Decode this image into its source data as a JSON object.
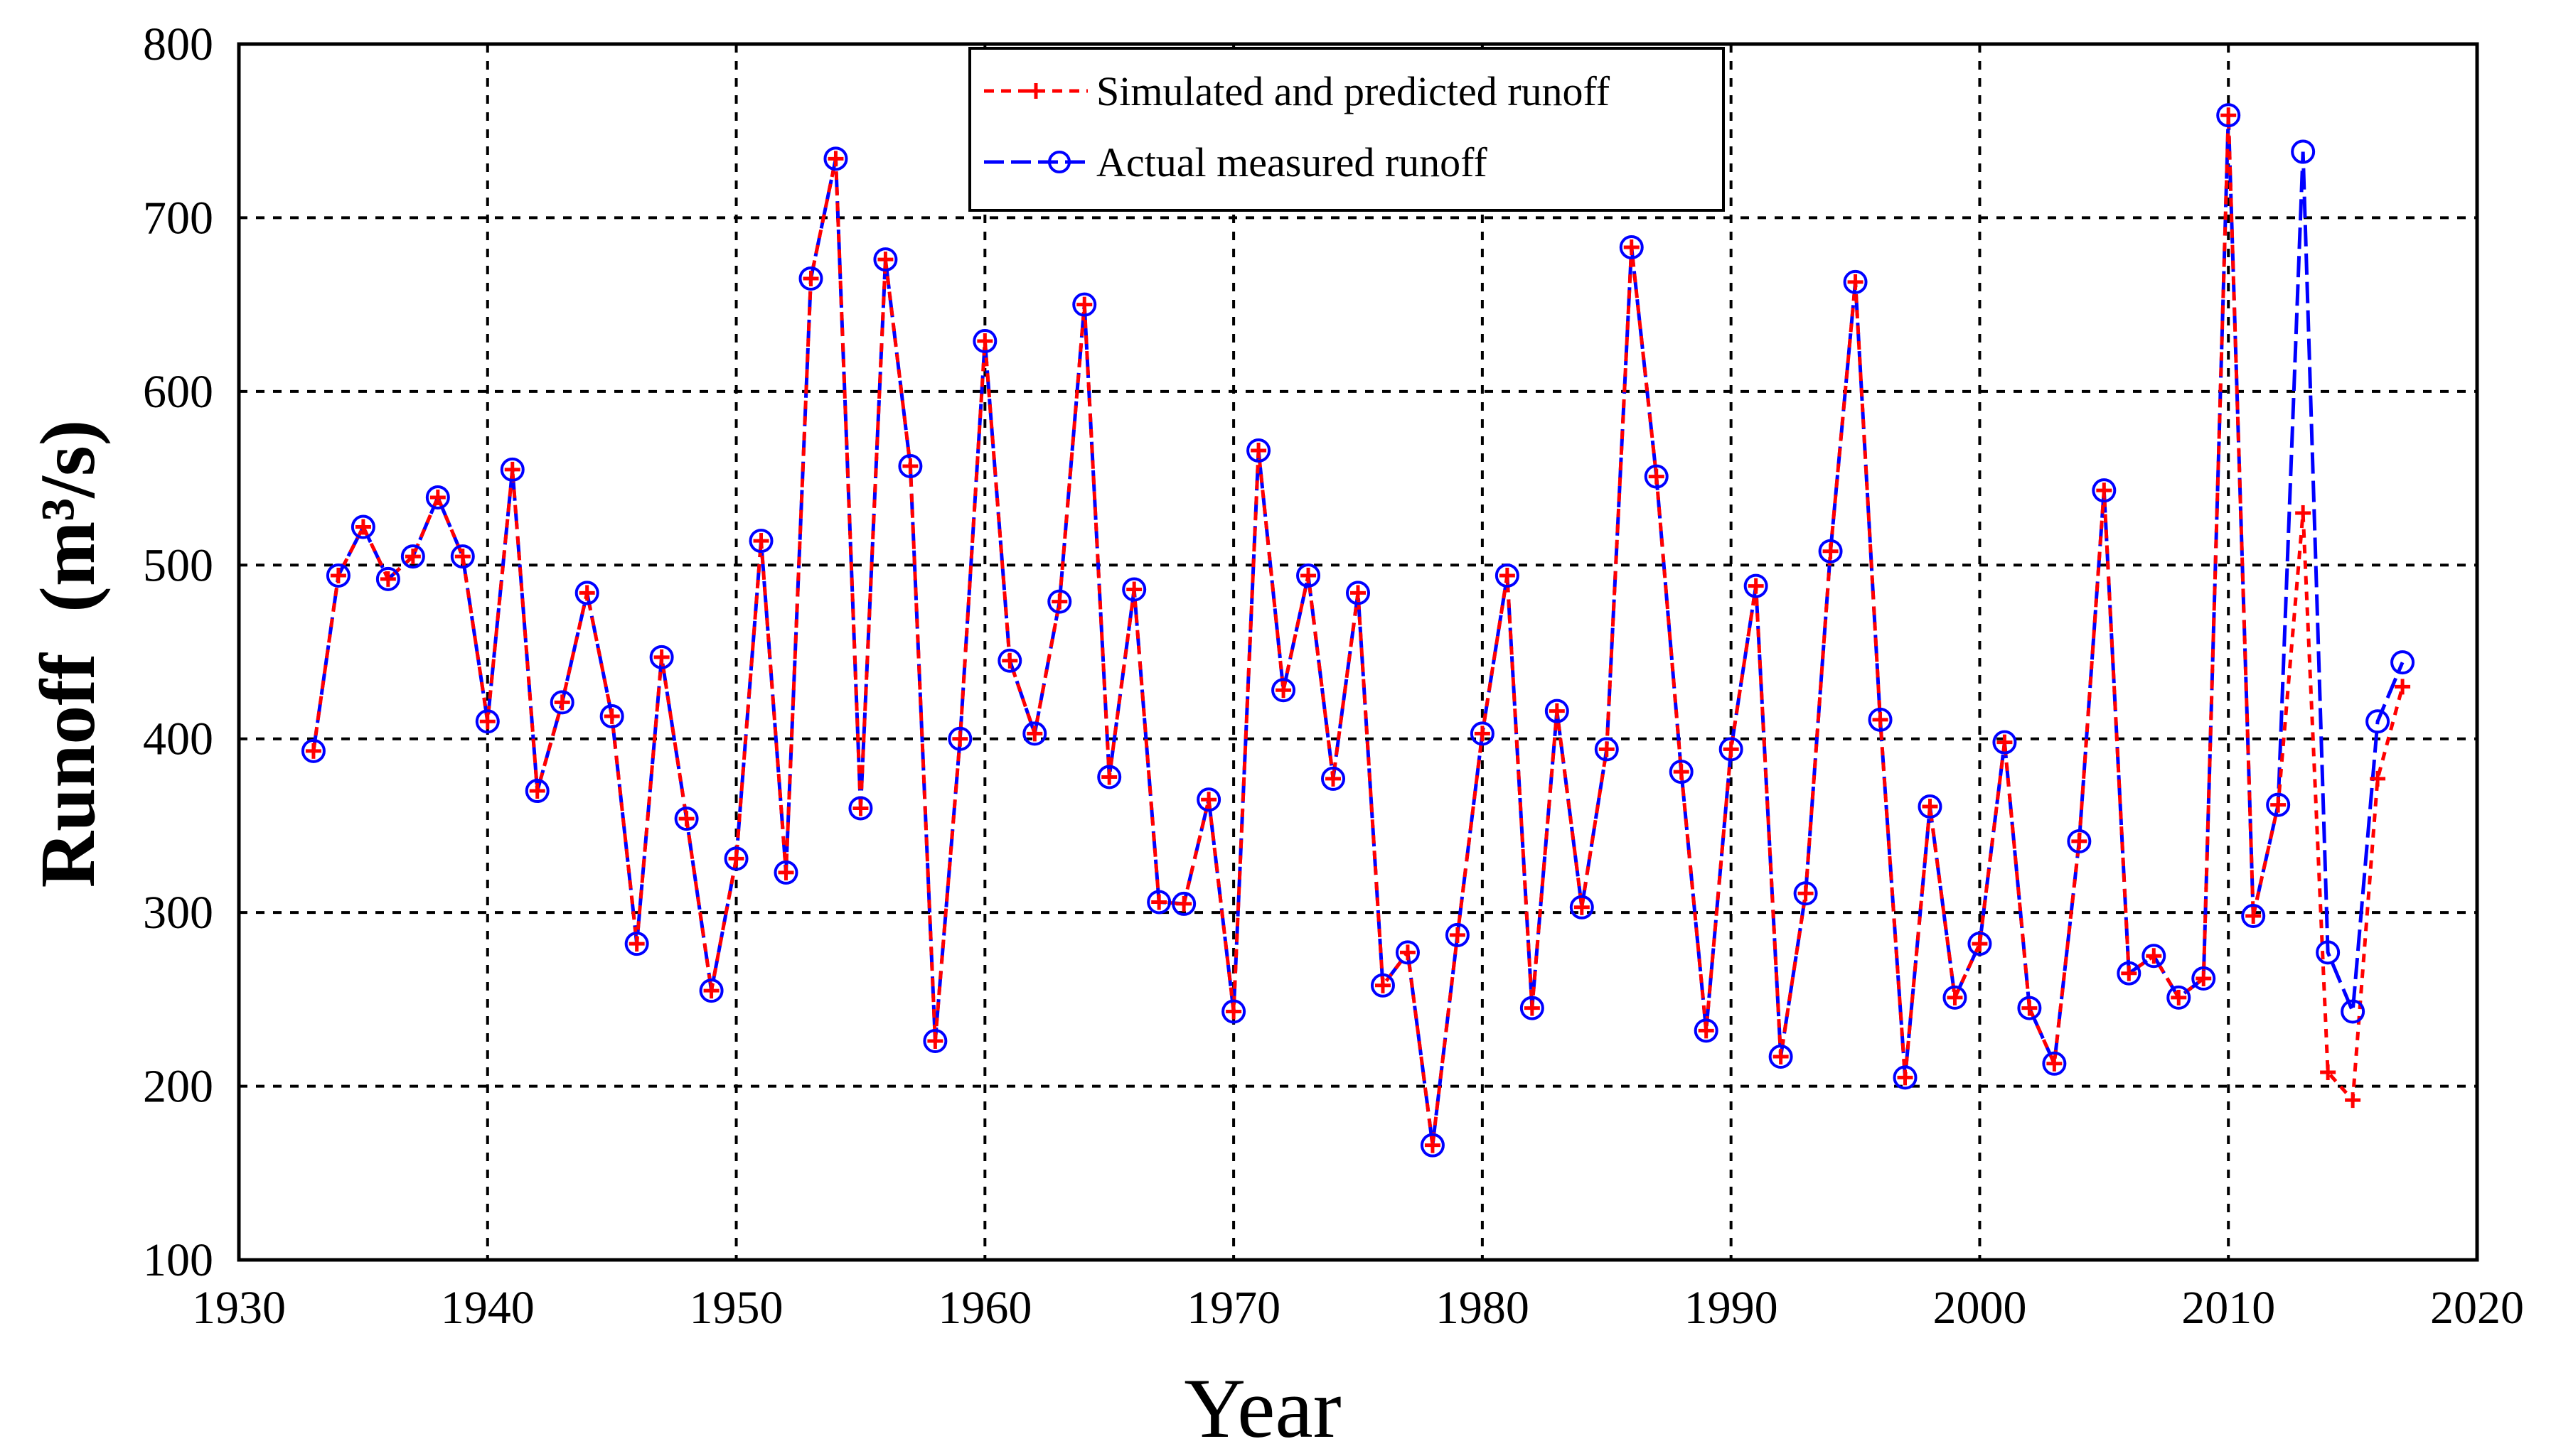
{
  "chart_data": {
    "type": "line",
    "title": "",
    "xlabel": "Year",
    "ylabel": "Runoff",
    "ylabel_unit": "(m³/s)",
    "xlim": [
      1930,
      2020
    ],
    "ylim": [
      100,
      800
    ],
    "xticks": [
      1930,
      1940,
      1950,
      1960,
      1970,
      1980,
      1990,
      2000,
      2010,
      2020
    ],
    "yticks": [
      100,
      200,
      300,
      400,
      500,
      600,
      700,
      800
    ],
    "grid": true,
    "legend_position": "top-center",
    "series": [
      {
        "name": "Simulated and predicted runoff",
        "color": "#ff0000",
        "line_style": "dashed",
        "marker": "plus",
        "x": [
          1933,
          1934,
          1935,
          1936,
          1937,
          1938,
          1939,
          1940,
          1941,
          1942,
          1943,
          1944,
          1945,
          1946,
          1947,
          1948,
          1949,
          1950,
          1951,
          1952,
          1953,
          1954,
          1955,
          1956,
          1957,
          1958,
          1959,
          1960,
          1961,
          1962,
          1963,
          1964,
          1965,
          1966,
          1967,
          1968,
          1969,
          1970,
          1971,
          1972,
          1973,
          1974,
          1975,
          1976,
          1977,
          1978,
          1979,
          1980,
          1981,
          1982,
          1983,
          1984,
          1985,
          1986,
          1987,
          1988,
          1989,
          1990,
          1991,
          1992,
          1993,
          1994,
          1995,
          1996,
          1997,
          1998,
          1999,
          2000,
          2001,
          2002,
          2003,
          2004,
          2005,
          2006,
          2007,
          2008,
          2009,
          2010,
          2011,
          2012,
          2013,
          2014,
          2015,
          2016,
          2017
        ],
        "y": [
          393,
          494,
          522,
          492,
          505,
          539,
          505,
          410,
          555,
          370,
          421,
          484,
          413,
          282,
          447,
          354,
          255,
          331,
          514,
          323,
          665,
          734,
          360,
          676,
          557,
          226,
          400,
          629,
          445,
          403,
          479,
          650,
          378,
          486,
          306,
          305,
          365,
          243,
          566,
          428,
          494,
          377,
          484,
          258,
          277,
          166,
          287,
          403,
          494,
          245,
          416,
          303,
          394,
          683,
          551,
          381,
          232,
          394,
          488,
          217,
          311,
          508,
          663,
          411,
          205,
          361,
          251,
          282,
          398,
          245,
          213,
          341,
          543,
          265,
          275,
          251,
          262,
          759,
          298,
          362,
          530,
          208,
          192,
          377,
          430
        ]
      },
      {
        "name": "Actual measured runoff",
        "color": "#0000ff",
        "line_style": "long-dash",
        "marker": "circle",
        "x": [
          1933,
          1934,
          1935,
          1936,
          1937,
          1938,
          1939,
          1940,
          1941,
          1942,
          1943,
          1944,
          1945,
          1946,
          1947,
          1948,
          1949,
          1950,
          1951,
          1952,
          1953,
          1954,
          1955,
          1956,
          1957,
          1958,
          1959,
          1960,
          1961,
          1962,
          1963,
          1964,
          1965,
          1966,
          1967,
          1968,
          1969,
          1970,
          1971,
          1972,
          1973,
          1974,
          1975,
          1976,
          1977,
          1978,
          1979,
          1980,
          1981,
          1982,
          1983,
          1984,
          1985,
          1986,
          1987,
          1988,
          1989,
          1990,
          1991,
          1992,
          1993,
          1994,
          1995,
          1996,
          1997,
          1998,
          1999,
          2000,
          2001,
          2002,
          2003,
          2004,
          2005,
          2006,
          2007,
          2008,
          2009,
          2010,
          2011,
          2012,
          2013,
          2014,
          2015,
          2016,
          2017
        ],
        "y": [
          393,
          494,
          522,
          492,
          505,
          539,
          505,
          410,
          555,
          370,
          421,
          484,
          413,
          282,
          447,
          354,
          255,
          331,
          514,
          323,
          665,
          734,
          360,
          676,
          557,
          226,
          400,
          629,
          445,
          403,
          479,
          650,
          378,
          486,
          306,
          305,
          365,
          243,
          566,
          428,
          494,
          377,
          484,
          258,
          277,
          166,
          287,
          403,
          494,
          245,
          416,
          303,
          394,
          683,
          551,
          381,
          232,
          394,
          488,
          217,
          311,
          508,
          663,
          411,
          205,
          361,
          251,
          282,
          398,
          245,
          213,
          341,
          543,
          265,
          275,
          251,
          262,
          759,
          298,
          362,
          738,
          277,
          243,
          410,
          444
        ]
      }
    ]
  }
}
